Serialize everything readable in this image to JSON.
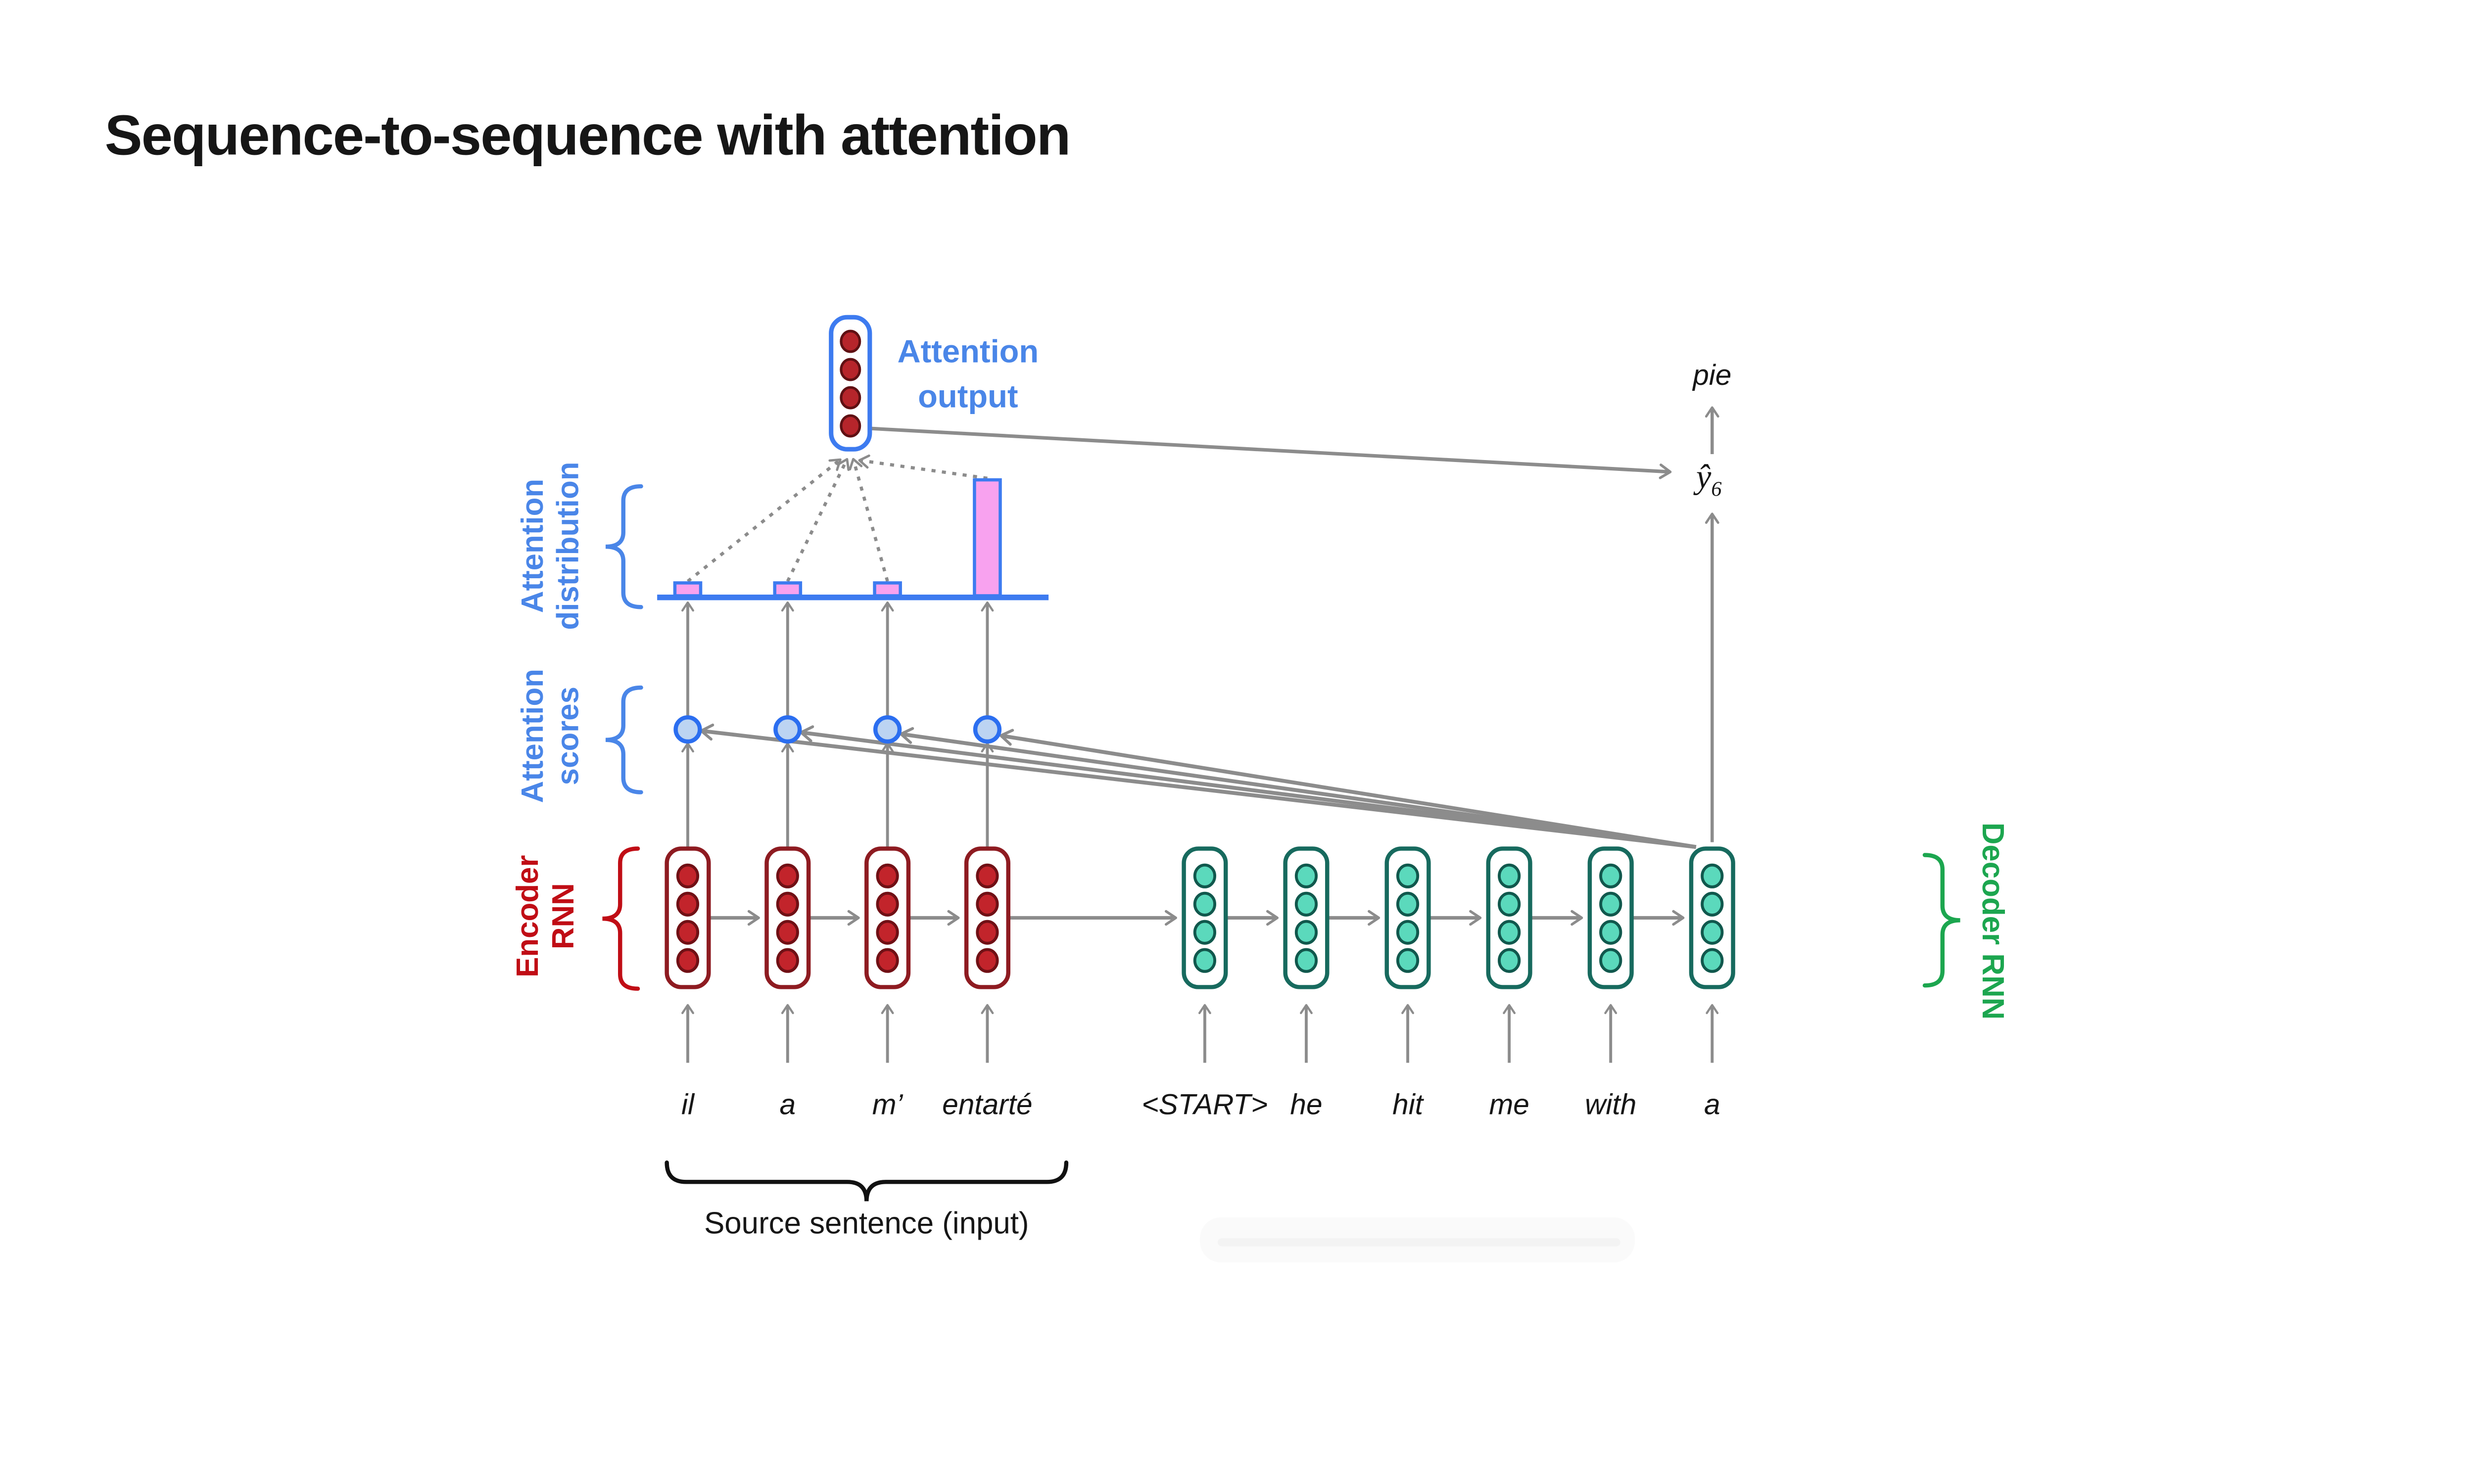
{
  "title": "Sequence-to-sequence with attention",
  "diagram": {
    "attention_output_label": [
      "Attention",
      "output"
    ],
    "attention_distribution_label": [
      "Attention",
      "distribution"
    ],
    "attention_scores_label": [
      "Attention",
      "scores"
    ],
    "encoder_label": [
      "Encoder",
      "RNN"
    ],
    "decoder_label": "Decoder RNN",
    "source_caption": "Source sentence (input)",
    "source_words": [
      "il",
      "a",
      "m’",
      "entarté"
    ],
    "target_words": [
      "<START>",
      "he",
      "hit",
      "me",
      "with",
      "a"
    ],
    "prediction": {
      "symbol_base": "ŷ",
      "symbol_sub": "6",
      "word": "pie"
    },
    "units_per_state": 4,
    "attention_weights": [
      0.09,
      0.09,
      0.09,
      0.85
    ]
  },
  "chart_data": {
    "type": "bar",
    "categories": [
      "il",
      "a",
      "m’",
      "entarté"
    ],
    "values": [
      0.09,
      0.09,
      0.09,
      0.85
    ],
    "title": "Attention distribution",
    "xlabel": "",
    "ylabel": "",
    "ylim": [
      0,
      1
    ]
  },
  "colors": {
    "label_blue": "#4a86e8",
    "shape_blue": "#3d7bf0",
    "bar_pink": "#f8a2ef",
    "score_fill": "#bcd4f2",
    "score_stroke": "#2b6ef0",
    "encoder_box_stroke": "#8e1b21",
    "encoder_unit_fill": "#c2242b",
    "encoder_unit_stroke": "#701015",
    "decoder_box_stroke": "#176a5e",
    "decoder_unit_fill": "#5bd9bc",
    "decoder_unit_stroke": "#11584d",
    "output_unit_fill": "#b6252b",
    "output_unit_stroke": "#5f1013",
    "encoder_label_red": "#c00d15",
    "decoder_label_green": "#1ca64f",
    "arrow_gray": "#8c8c8c",
    "text_black": "#161616"
  }
}
